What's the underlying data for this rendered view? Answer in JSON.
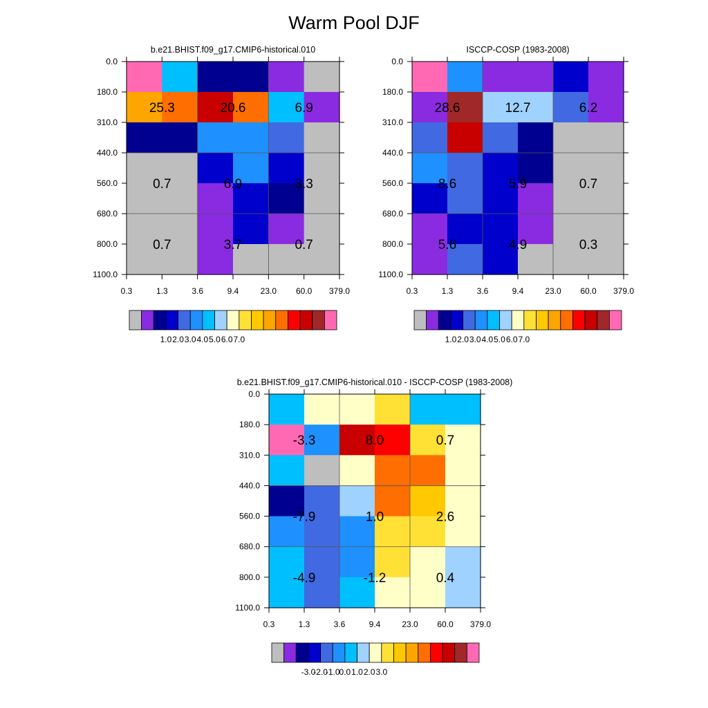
{
  "title": "Warm Pool DJF",
  "palette": [
    "#bebebe",
    "#8a2be2",
    "#000090",
    "#0000cd",
    "#4169e1",
    "#1e90ff",
    "#00bfff",
    "#a0d2ff",
    "#ffffc8",
    "#ffe135",
    "#ffc800",
    "#ffa500",
    "#ff6e00",
    "#ff0000",
    "#c80000",
    "#a02828",
    "#ff69b4"
  ],
  "chart_data": [
    {
      "type": "heatmap",
      "title": "b.e21.BHIST.f09_g17.CMIP6-historical.010",
      "x_tick_labels": [
        "0.3",
        "1.3",
        "3.6",
        "9.4",
        "23.0",
        "60.0",
        "379.0"
      ],
      "y_tick_labels": [
        "0.0",
        "180.0",
        "310.0",
        "440.0",
        "560.0",
        "680.0",
        "800.0",
        "1100.0"
      ],
      "cell_color_index": [
        [
          16,
          6,
          2,
          2,
          1,
          0
        ],
        [
          11,
          12,
          14,
          12,
          6,
          1
        ],
        [
          2,
          2,
          5,
          5,
          4,
          0
        ],
        [
          0,
          0,
          3,
          5,
          3,
          0
        ],
        [
          0,
          0,
          1,
          3,
          2,
          0
        ],
        [
          0,
          0,
          1,
          3,
          1,
          0
        ],
        [
          0,
          0,
          1,
          0,
          0,
          0
        ]
      ],
      "summary_values": [
        [
          "25.3",
          "20.6",
          "6.9"
        ],
        [
          "0.7",
          "6.9",
          "3.3"
        ],
        [
          "0.7",
          "3.7",
          "0.7"
        ]
      ],
      "colorbar": {
        "labels": [
          "1.0",
          "2.0",
          "3.0",
          "4.0",
          "5.0",
          "6.0",
          "7.0"
        ],
        "label_positions": [
          1.5,
          2.5,
          3.5,
          4.5,
          5.5,
          6.5,
          7.5
        ]
      }
    },
    {
      "type": "heatmap",
      "title": "ISCCP-COSP (1983-2008)",
      "x_tick_labels": [
        "0.3",
        "1.3",
        "3.6",
        "9.4",
        "23.0",
        "60.0",
        "379.0"
      ],
      "y_tick_labels": [
        "0.0",
        "180.0",
        "310.0",
        "440.0",
        "560.0",
        "680.0",
        "800.0",
        "1100.0"
      ],
      "cell_color_index": [
        [
          16,
          5,
          1,
          1,
          3,
          1
        ],
        [
          1,
          15,
          7,
          7,
          4,
          1
        ],
        [
          4,
          14,
          4,
          2,
          0,
          0
        ],
        [
          5,
          4,
          3,
          2,
          0,
          0
        ],
        [
          3,
          4,
          3,
          1,
          0,
          0
        ],
        [
          1,
          3,
          3,
          1,
          0,
          0
        ],
        [
          1,
          4,
          3,
          0,
          0,
          0
        ]
      ],
      "summary_values": [
        [
          "28.6",
          "12.7",
          "6.2"
        ],
        [
          "8.6",
          "5.9",
          "0.7"
        ],
        [
          "5.6",
          "4.9",
          "0.3"
        ]
      ],
      "colorbar": {
        "labels": [
          "1.0",
          "2.0",
          "3.0",
          "4.0",
          "5.0",
          "6.0",
          "7.0"
        ],
        "label_positions": [
          1.5,
          2.5,
          3.5,
          4.5,
          5.5,
          6.5,
          7.5
        ]
      }
    },
    {
      "type": "heatmap",
      "title": "b.e21.BHIST.f09_g17.CMIP6-historical.010 - ISCCP-COSP (1983-2008)",
      "x_tick_labels": [
        "0.3",
        "1.3",
        "3.6",
        "9.4",
        "23.0",
        "60.0",
        "379.0"
      ],
      "y_tick_labels": [
        "0.0",
        "180.0",
        "310.0",
        "440.0",
        "560.0",
        "680.0",
        "800.0",
        "1100.0"
      ],
      "cell_color_index": [
        [
          6,
          8,
          8,
          9,
          6,
          6
        ],
        [
          16,
          5,
          14,
          13,
          9,
          8
        ],
        [
          6,
          0,
          8,
          12,
          12,
          8
        ],
        [
          2,
          4,
          7,
          12,
          10,
          8
        ],
        [
          5,
          4,
          5,
          9,
          9,
          8
        ],
        [
          6,
          4,
          5,
          9,
          8,
          7
        ],
        [
          6,
          4,
          6,
          8,
          8,
          7
        ]
      ],
      "summary_values": [
        [
          "-3.3",
          "8.0",
          "0.7"
        ],
        [
          "-7.9",
          "1.0",
          "2.6"
        ],
        [
          "-4.9",
          "-1.2",
          "0.4"
        ]
      ],
      "colorbar": {
        "labels": [
          "-3.0",
          "-2.0",
          "-1.0",
          "0.0",
          "1.0",
          "2.0",
          "3.0"
        ],
        "label_positions": [
          1.5,
          2.5,
          3.5,
          4.5,
          5.5,
          6.5,
          7.5
        ]
      }
    }
  ]
}
